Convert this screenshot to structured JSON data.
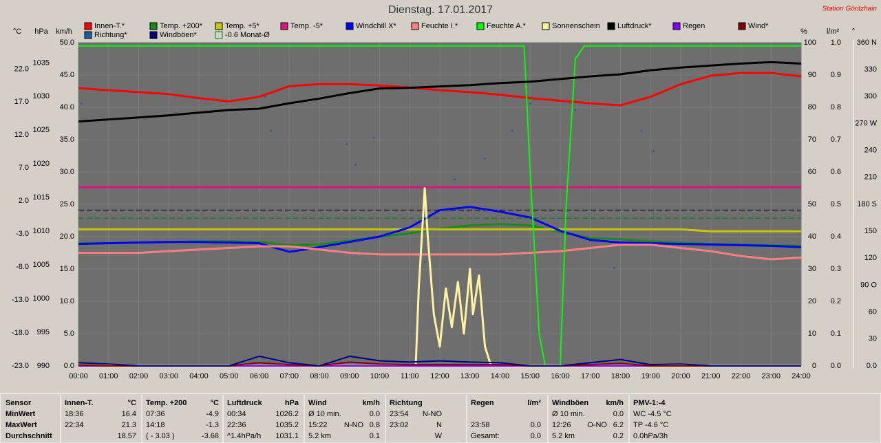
{
  "chart_data": {
    "type": "line",
    "title": "Dienstag. 17.01.2017",
    "station": "Station Göritzhain",
    "axis_units": {
      "y": "°C",
      "y2": "hPa",
      "y3": "km/h",
      "y4": "%",
      "y5": "l/m²",
      "y6": "°"
    },
    "x": [
      0,
      1,
      2,
      3,
      4,
      5,
      6,
      7,
      8,
      9,
      10,
      11,
      12,
      13,
      14,
      15,
      16,
      17,
      18,
      19,
      20,
      21,
      22,
      23,
      24
    ],
    "xlim": [
      0,
      24
    ],
    "xticks": [
      {
        "value": 0,
        "label": "00:00"
      },
      {
        "value": 1,
        "label": "01:00"
      },
      {
        "value": 2,
        "label": "02:00"
      },
      {
        "value": 3,
        "label": "03:00"
      },
      {
        "value": 4,
        "label": "04:00"
      },
      {
        "value": 5,
        "label": "05:00"
      },
      {
        "value": 6,
        "label": "06:00"
      },
      {
        "value": 7,
        "label": "07:00"
      },
      {
        "value": 8,
        "label": "08:00"
      },
      {
        "value": 9,
        "label": "09:00"
      },
      {
        "value": 10,
        "label": "10:00"
      },
      {
        "value": 11,
        "label": "11:00"
      },
      {
        "value": 12,
        "label": "12:00"
      },
      {
        "value": 13,
        "label": "13:00"
      },
      {
        "value": 14,
        "label": "14:00"
      },
      {
        "value": 15,
        "label": "15:00"
      },
      {
        "value": 16,
        "label": "16:00"
      },
      {
        "value": 17,
        "label": "17:00"
      },
      {
        "value": 18,
        "label": "18:00"
      },
      {
        "value": 19,
        "label": "19:00"
      },
      {
        "value": 20,
        "label": "20:00"
      },
      {
        "value": 21,
        "label": "21:00"
      },
      {
        "value": 22,
        "label": "22:00"
      },
      {
        "value": 23,
        "label": "23:00"
      },
      {
        "value": 24,
        "label": "24:00"
      }
    ],
    "ylim": [
      -23,
      26
    ],
    "yticks": [
      {
        "value": 22,
        "label": "22.0"
      },
      {
        "value": 17,
        "label": "17.0"
      },
      {
        "value": 12,
        "label": "12.0"
      },
      {
        "value": 7,
        "label": "7.0"
      },
      {
        "value": 2,
        "label": "2.0"
      },
      {
        "value": -3,
        "label": "-3.0"
      },
      {
        "value": -8,
        "label": "-8.0"
      },
      {
        "value": -13,
        "label": "-13.0"
      },
      {
        "value": -18,
        "label": "-18.0"
      },
      {
        "value": -23,
        "label": "-23.0"
      }
    ],
    "y2lim": [
      990,
      1038
    ],
    "y2ticks": [
      1035,
      1030,
      1025,
      1020,
      1015,
      1010,
      1005,
      1000,
      995,
      990
    ],
    "y3lim": [
      0,
      50
    ],
    "y3ticks": [
      {
        "value": 50,
        "label": "50.0"
      },
      {
        "value": 45,
        "label": "45.0"
      },
      {
        "value": 40,
        "label": "40.0"
      },
      {
        "value": 35,
        "label": "35.0"
      },
      {
        "value": 30,
        "label": "30.0"
      },
      {
        "value": 25,
        "label": "25.0"
      },
      {
        "value": 20,
        "label": "20.0"
      },
      {
        "value": 15,
        "label": "15.0"
      },
      {
        "value": 10,
        "label": "10.0"
      },
      {
        "value": 5,
        "label": "5.0"
      },
      {
        "value": 0,
        "label": "0.0"
      }
    ],
    "y4lim": [
      0,
      100
    ],
    "y4ticks": [
      100,
      90,
      80,
      70,
      60,
      50,
      40,
      30,
      20,
      10,
      0
    ],
    "y5lim": [
      0,
      1
    ],
    "y5ticks": [
      {
        "value": 1,
        "label": "1.0"
      },
      0.9,
      0.8,
      0.7,
      0.6,
      0.5,
      0.4,
      0.3,
      0.2,
      0.1,
      {
        "value": 0,
        "label": "0.0"
      }
    ],
    "y6lim": [
      0,
      360
    ],
    "y6ticks": [
      {
        "value": 360,
        "label": "360 N"
      },
      330,
      300,
      {
        "value": 270,
        "label": "270 W"
      },
      240,
      210,
      {
        "value": 180,
        "label": "180 S"
      },
      150,
      120,
      {
        "value": 90,
        "label": "90 O"
      },
      60,
      30,
      {
        "value": 0,
        "label": "0.0"
      }
    ],
    "grid": true,
    "series": [
      {
        "name": "Innen-T.*",
        "color": "#ff0000",
        "axis": "y",
        "values": [
          19.1,
          18.8,
          18.5,
          18.2,
          17.6,
          17.1,
          17.8,
          19.4,
          19.7,
          19.7,
          19.5,
          19.2,
          18.8,
          18.5,
          18.1,
          17.6,
          17.2,
          16.8,
          16.5,
          17.8,
          19.7,
          21.0,
          21.4,
          21.4,
          20.9
        ]
      },
      {
        "name": "Temp. +200*",
        "color": "#1a8a1a",
        "axis": "y",
        "values": [
          -4.4,
          -4.4,
          -4.3,
          -4.2,
          -4.1,
          -4.1,
          -4.2,
          -4.7,
          -4.6,
          -4.0,
          -3.4,
          -2.9,
          -2.2,
          -1.7,
          -1.5,
          -1.7,
          -2.7,
          -3.6,
          -3.8,
          -4.1,
          -4.3,
          -4.5,
          -4.6,
          -4.7,
          -4.8
        ]
      },
      {
        "name": "Temp. +5*",
        "color": "#c8c800",
        "axis": "y",
        "values": [
          -2.3,
          -2.3,
          -2.3,
          -2.3,
          -2.3,
          -2.3,
          -2.3,
          -2.3,
          -2.3,
          -2.3,
          -2.3,
          -2.3,
          -2.3,
          -2.3,
          -2.3,
          -2.3,
          -2.3,
          -2.3,
          -2.3,
          -2.3,
          -2.3,
          -2.6,
          -2.6,
          -2.6,
          -2.6
        ]
      },
      {
        "name": "Temp. -5*",
        "color": "#e0147c",
        "axis": "y",
        "values": [
          4.1,
          4.1,
          4.1,
          4.1,
          4.1,
          4.1,
          4.1,
          4.1,
          4.1,
          4.1,
          4.1,
          4.1,
          4.1,
          4.1,
          4.1,
          4.1,
          4.1,
          4.1,
          4.1,
          4.1,
          4.1,
          4.1,
          4.1,
          4.1,
          4.1
        ]
      },
      {
        "name": "Windchill X*",
        "color": "#0000ff",
        "axis": "y",
        "values": [
          -4.5,
          -4.4,
          -4.3,
          -4.2,
          -4.2,
          -4.3,
          -4.4,
          -5.7,
          -5.0,
          -4.2,
          -3.4,
          -2.0,
          0.6,
          1.1,
          0.4,
          -0.5,
          -2.5,
          -3.9,
          -4.3,
          -4.4,
          -4.5,
          -4.6,
          -4.7,
          -4.8,
          -5.0
        ]
      },
      {
        "name": "Feuchte I.*",
        "color": "#ff8080",
        "axis": "y4",
        "values": [
          35,
          35,
          35,
          35.5,
          36,
          36.5,
          37,
          37,
          36,
          35,
          34.5,
          34.5,
          34.5,
          34.5,
          34.5,
          35,
          35.5,
          36.5,
          37.5,
          37.5,
          36.5,
          35.5,
          34,
          33,
          33.5
        ]
      },
      {
        "name": "Feuchte A.*",
        "color": "#00ff00",
        "axis": "y4",
        "x": [
          0,
          14.8,
          15.0,
          15.3,
          15.5,
          16.0,
          16.2,
          16.5,
          16.8,
          24
        ],
        "values": [
          99,
          99,
          60,
          10,
          0,
          0,
          50,
          95,
          99,
          99
        ]
      },
      {
        "name": "Sonnenschein",
        "color": "#fff2a0",
        "axis": "y3",
        "x": [
          0,
          11.2,
          11.3,
          11.5,
          11.6,
          11.8,
          12.0,
          12.2,
          12.4,
          12.6,
          12.8,
          13.0,
          13.1,
          13.3,
          13.5,
          13.7,
          24
        ],
        "values": [
          0,
          0,
          12,
          27.5,
          20,
          8,
          3,
          12,
          6,
          13,
          5,
          15,
          8,
          14,
          3,
          0,
          0
        ]
      },
      {
        "name": "Luftdruck*",
        "color": "#000000",
        "axis": "y2",
        "values": [
          1026.3,
          1026.6,
          1026.9,
          1027.2,
          1027.6,
          1028.0,
          1028.2,
          1029.0,
          1029.7,
          1030.5,
          1031.2,
          1031.3,
          1031.5,
          1031.7,
          1032.0,
          1032.2,
          1032.6,
          1033.0,
          1033.3,
          1033.9,
          1034.3,
          1034.6,
          1034.9,
          1035.1,
          1034.9
        ]
      },
      {
        "name": "Regen",
        "color": "#8000ff",
        "axis": "y5",
        "x": [
          0,
          24
        ],
        "values": [
          0,
          0
        ]
      },
      {
        "name": "Wind*",
        "color": "#800000",
        "axis": "y3",
        "values": [
          0.1,
          0,
          0,
          0,
          0,
          0,
          0.5,
          0.2,
          0,
          0.6,
          0.3,
          0.2,
          0.2,
          0.2,
          0.2,
          0,
          0,
          0.2,
          0.4,
          0,
          0,
          0,
          0,
          0,
          0
        ]
      },
      {
        "name": "Richtung*",
        "color": "#1e5aa0",
        "axis": "y6",
        "mode": "scatter",
        "x": [
          0.1,
          6.2,
          6.4,
          8.9,
          9.2,
          9.8,
          11.5,
          12.5,
          13.5,
          14.4,
          15.0,
          16.5,
          17.8,
          18.7,
          19.1
        ],
        "values": [
          292,
          300,
          262,
          247,
          224,
          254,
          116,
          208,
          231,
          262,
          292,
          285,
          109,
          262,
          239
        ]
      },
      {
        "name": "Windböen*",
        "color": "#000080",
        "axis": "y3",
        "values": [
          0.5,
          0.3,
          0,
          0,
          0,
          0,
          1.5,
          0.5,
          0,
          1.5,
          0.8,
          0.6,
          0.8,
          0.6,
          0.5,
          0,
          0,
          0.5,
          1,
          0.2,
          0.3,
          0,
          0,
          0,
          0
        ]
      },
      {
        "name": "-0.6 Monat-Ø",
        "color": "#008000",
        "axis": "y",
        "dash": true,
        "x": [
          0,
          24
        ],
        "values": [
          -0.6,
          -0.6
        ]
      }
    ]
  },
  "table": {
    "row_labels": [
      "Sensor",
      "MinWert",
      "MaxWert",
      "Durchschnitt"
    ],
    "columns": [
      {
        "header": [
          "Innen-T.",
          "°C"
        ],
        "cells": [
          [
            "18:36",
            "16.4"
          ],
          [
            "22:34",
            "21.3"
          ],
          [
            "18.57"
          ]
        ]
      },
      {
        "header": [
          "Temp. +200",
          "°C"
        ],
        "cells": [
          [
            "07:36",
            "-4.9"
          ],
          [
            "14:18",
            "-1.3"
          ],
          [
            "( - 3.03 )",
            "-3.68"
          ]
        ]
      },
      {
        "header": [
          "Luftdruck",
          "hPa"
        ],
        "cells": [
          [
            "00:34",
            "1026.2"
          ],
          [
            "22:36",
            "1035.2"
          ],
          [
            "^1.4hPa/h",
            "1031.1"
          ]
        ]
      },
      {
        "header": [
          "Wind",
          "km/h"
        ],
        "cells": [
          [
            "Ø 10 min.",
            "0.0"
          ],
          [
            "15:22",
            "N-NO",
            "0.8"
          ],
          [
            "5.2 km",
            "0.1"
          ]
        ]
      },
      {
        "header": [
          "Richtung"
        ],
        "cells": [
          [
            "23:54",
            "N-NO"
          ],
          [
            "23:02",
            "N"
          ],
          [
            "W"
          ]
        ]
      },
      {
        "header": [
          "Regen",
          "l/m²"
        ],
        "cells": [
          [],
          [
            "23:58",
            "0.0"
          ],
          [
            "Gesamt:",
            "0.0"
          ]
        ]
      },
      {
        "header": [
          "Windböen",
          "km/h"
        ],
        "cells": [
          [
            "Ø 10 min.",
            "0.0"
          ],
          [
            "12:26",
            "O-NO",
            "6.2"
          ],
          [
            "5.2 km",
            "0.2"
          ]
        ]
      },
      {
        "header": [
          "PMV-1:-4"
        ],
        "cells": [
          [
            "WC -4.5 °C"
          ],
          [
            "TP -4.6 °C"
          ],
          [
            "0.0hPa/3h"
          ]
        ]
      }
    ]
  }
}
